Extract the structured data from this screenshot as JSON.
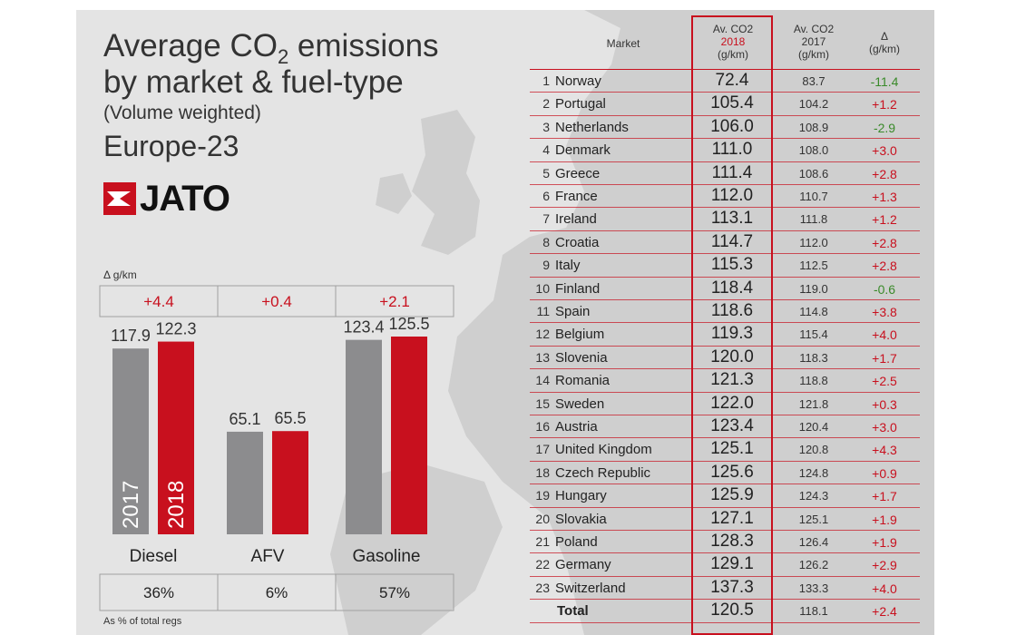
{
  "title": {
    "line1_prefix": "Average CO",
    "line1_sub": "2",
    "line1_suffix": " emissions",
    "line2": "by market & fuel-type",
    "line3": "(Volume weighted)",
    "line4": "Europe-23"
  },
  "logo": "JATO",
  "colors": {
    "grey": "#8c8c8e",
    "red": "#c8101e",
    "green": "#3a8a2a",
    "panel": "#e4e4e4"
  },
  "chart_data": [
    {
      "type": "bar",
      "delta_label": "Δ g/km",
      "categories": [
        "Diesel",
        "AFV",
        "Gasoline"
      ],
      "series": [
        {
          "name": "2017",
          "values": [
            117.9,
            65.1,
            123.4
          ]
        },
        {
          "name": "2018",
          "values": [
            122.3,
            65.5,
            125.5
          ]
        }
      ],
      "deltas": [
        "+4.4",
        "+0.4",
        "+2.1"
      ],
      "shares": [
        "36%",
        "6%",
        "57%"
      ],
      "shares_note": "As % of total regs",
      "ylim": [
        0,
        130
      ]
    },
    {
      "type": "table",
      "columns": [
        "Market",
        "Av. CO2 2018 (g/km)",
        "Av. CO2 2017 (g/km)",
        "Δ (g/km)"
      ],
      "header": {
        "market": "Market",
        "col2018": [
          "Av. CO2",
          "2018",
          "(g/km)"
        ],
        "col2017": [
          "Av. CO2",
          "2017",
          "(g/km)"
        ],
        "delta": [
          "Δ",
          "(g/km)"
        ]
      },
      "rows": [
        {
          "rank": "1",
          "market": "Norway",
          "v2018": "72.4",
          "v2017": "83.7",
          "delta": "-11.4"
        },
        {
          "rank": "2",
          "market": "Portugal",
          "v2018": "105.4",
          "v2017": "104.2",
          "delta": "+1.2"
        },
        {
          "rank": "3",
          "market": "Netherlands",
          "v2018": "106.0",
          "v2017": "108.9",
          "delta": "-2.9"
        },
        {
          "rank": "4",
          "market": "Denmark",
          "v2018": "111.0",
          "v2017": "108.0",
          "delta": "+3.0"
        },
        {
          "rank": "5",
          "market": "Greece",
          "v2018": "111.4",
          "v2017": "108.6",
          "delta": "+2.8"
        },
        {
          "rank": "6",
          "market": "France",
          "v2018": "112.0",
          "v2017": "110.7",
          "delta": "+1.3"
        },
        {
          "rank": "7",
          "market": "Ireland",
          "v2018": "113.1",
          "v2017": "111.8",
          "delta": "+1.2"
        },
        {
          "rank": "8",
          "market": "Croatia",
          "v2018": "114.7",
          "v2017": "112.0",
          "delta": "+2.8"
        },
        {
          "rank": "9",
          "market": "Italy",
          "v2018": "115.3",
          "v2017": "112.5",
          "delta": "+2.8"
        },
        {
          "rank": "10",
          "market": "Finland",
          "v2018": "118.4",
          "v2017": "119.0",
          "delta": "-0.6"
        },
        {
          "rank": "11",
          "market": "Spain",
          "v2018": "118.6",
          "v2017": "114.8",
          "delta": "+3.8"
        },
        {
          "rank": "12",
          "market": "Belgium",
          "v2018": "119.3",
          "v2017": "115.4",
          "delta": "+4.0"
        },
        {
          "rank": "13",
          "market": "Slovenia",
          "v2018": "120.0",
          "v2017": "118.3",
          "delta": "+1.7"
        },
        {
          "rank": "14",
          "market": "Romania",
          "v2018": "121.3",
          "v2017": "118.8",
          "delta": "+2.5"
        },
        {
          "rank": "15",
          "market": "Sweden",
          "v2018": "122.0",
          "v2017": "121.8",
          "delta": "+0.3"
        },
        {
          "rank": "16",
          "market": "Austria",
          "v2018": "123.4",
          "v2017": "120.4",
          "delta": "+3.0"
        },
        {
          "rank": "17",
          "market": "United Kingdom",
          "v2018": "125.1",
          "v2017": "120.8",
          "delta": "+4.3"
        },
        {
          "rank": "18",
          "market": "Czech Republic",
          "v2018": "125.6",
          "v2017": "124.8",
          "delta": "+0.9"
        },
        {
          "rank": "19",
          "market": "Hungary",
          "v2018": "125.9",
          "v2017": "124.3",
          "delta": "+1.7"
        },
        {
          "rank": "20",
          "market": "Slovakia",
          "v2018": "127.1",
          "v2017": "125.1",
          "delta": "+1.9"
        },
        {
          "rank": "21",
          "market": "Poland",
          "v2018": "128.3",
          "v2017": "126.4",
          "delta": "+1.9"
        },
        {
          "rank": "22",
          "market": "Germany",
          "v2018": "129.1",
          "v2017": "126.2",
          "delta": "+2.9"
        },
        {
          "rank": "23",
          "market": "Switzerland",
          "v2018": "137.3",
          "v2017": "133.3",
          "delta": "+4.0"
        }
      ],
      "total": {
        "label": "Total",
        "v2018": "120.5",
        "v2017": "118.1",
        "delta": "+2.4"
      }
    }
  ]
}
